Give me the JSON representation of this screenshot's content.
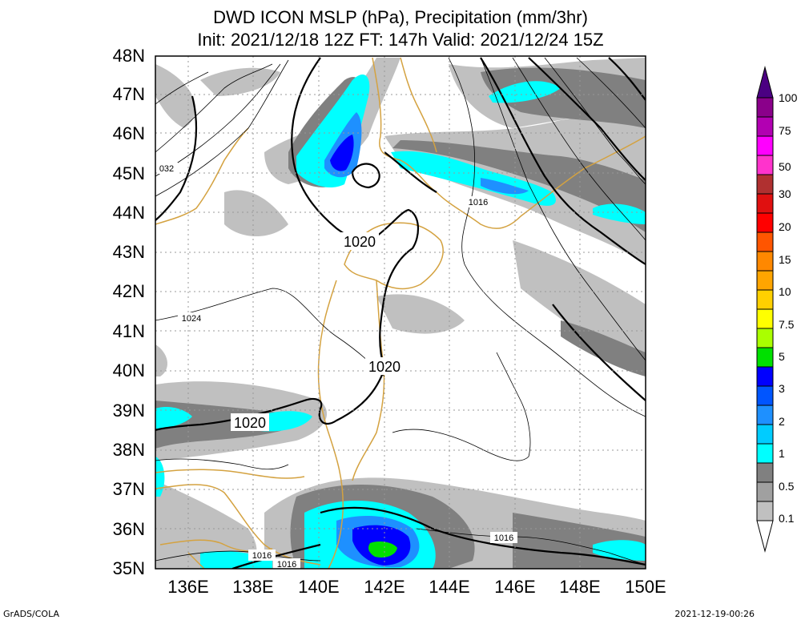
{
  "title": {
    "line1": "DWD ICON MSLP (hPa), Precipitation (mm/3hr)",
    "line2": "Init: 2021/12/18 12Z  FT: 147h  Valid: 2021/12/24 15Z"
  },
  "lat_labels": [
    "48N",
    "47N",
    "46N",
    "45N",
    "44N",
    "43N",
    "42N",
    "41N",
    "40N",
    "39N",
    "38N",
    "37N",
    "36N",
    "35N"
  ],
  "lon_labels": [
    "136E",
    "138E",
    "140E",
    "142E",
    "144E",
    "146E",
    "148E",
    "150E"
  ],
  "isobar_labels": {
    "l1020a": "1020",
    "l1020b": "1020",
    "l1020c": "1020",
    "l1016a": "1016",
    "l1016b": "1016",
    "l1016c": "1016",
    "l1016d": "1016",
    "l1024": "1024",
    "l032": "032"
  },
  "colorbar": {
    "labels": [
      "100",
      "75",
      "50",
      "30",
      "20",
      "15",
      "10",
      "7.5",
      "5",
      "3",
      "2",
      "1",
      "0.5",
      "0.1"
    ],
    "colors": [
      "#8a008a",
      "#b200b2",
      "#ff00ff",
      "#b03030",
      "#ff0000",
      "#ff8800",
      "#ffa500",
      "#ffff00",
      "#00e000",
      "#0000ff",
      "#1e90ff",
      "#00ffff",
      "#808080",
      "#c0c0c0"
    ]
  },
  "footer": {
    "left": "GrADS/COLA",
    "right": "2021-12-19-00:26"
  }
}
